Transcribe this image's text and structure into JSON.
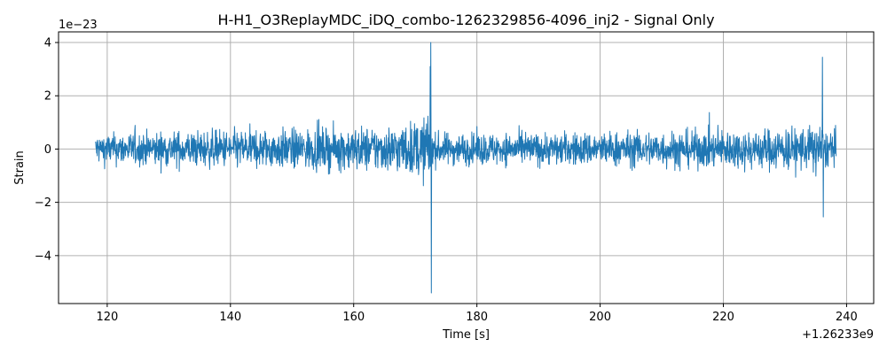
{
  "chart_data": {
    "type": "line",
    "title": "H-H1_O3ReplayMDC_iDQ_combo-1262329856-4096_inj2 - Signal Only",
    "xlabel": "Time [s]",
    "ylabel": "Strain",
    "x_offset_label": "+1.26233e9",
    "y_scale_label": "1e−23",
    "xlim": [
      112.1,
      244.4
    ],
    "ylim": [
      -5.8,
      4.4
    ],
    "x_ticks": [
      120,
      140,
      160,
      180,
      200,
      220,
      240
    ],
    "x_tick_labels": [
      "120",
      "140",
      "160",
      "180",
      "200",
      "220",
      "240"
    ],
    "y_ticks": [
      -4,
      -2,
      0,
      2,
      4
    ],
    "y_tick_labels": [
      "−4",
      "−2",
      "0",
      "2",
      "4"
    ],
    "grid": true,
    "legend": "none",
    "series": [
      {
        "color": "#1f77b4",
        "x_start": 118.1,
        "x_end": 238.3,
        "envelope": [
          {
            "x": 118.1,
            "amp": 1.0
          },
          {
            "x": 125.0,
            "amp": 1.1
          },
          {
            "x": 140.0,
            "amp": 1.25
          },
          {
            "x": 155.0,
            "amp": 1.35
          },
          {
            "x": 165.0,
            "amp": 1.5
          },
          {
            "x": 170.0,
            "amp": 1.8
          },
          {
            "x": 172.4,
            "amp": 2.3
          },
          {
            "x": 172.8,
            "amp": 1.05
          },
          {
            "x": 190.0,
            "amp": 1.05
          },
          {
            "x": 210.0,
            "amp": 1.2
          },
          {
            "x": 225.0,
            "amp": 1.3
          },
          {
            "x": 233.0,
            "amp": 1.5
          },
          {
            "x": 236.0,
            "amp": 1.7
          },
          {
            "x": 236.5,
            "amp": 1.2
          },
          {
            "x": 238.3,
            "amp": 1.2
          }
        ],
        "peaks": [
          {
            "x": 172.5,
            "y": 4.0
          },
          {
            "x": 172.6,
            "y": -5.4
          },
          {
            "x": 172.4,
            "y": 3.1
          },
          {
            "x": 236.1,
            "y": 3.45
          },
          {
            "x": 236.2,
            "y": -2.55
          }
        ]
      }
    ]
  }
}
